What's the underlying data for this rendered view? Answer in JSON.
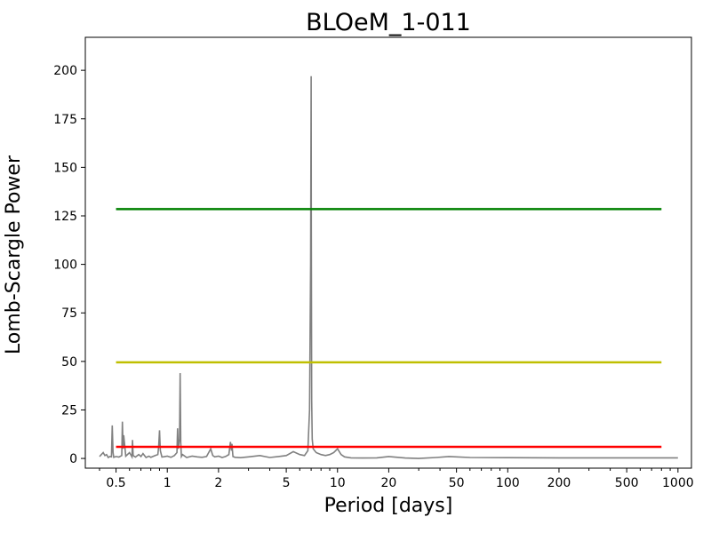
{
  "chart_data": {
    "type": "line",
    "title": "BLOeM_1-011",
    "xlabel": "Period [days]",
    "ylabel": "Lomb-Scargle Power",
    "x_scale": "log",
    "xlim": [
      0.33,
      1200
    ],
    "ylim": [
      -5,
      217
    ],
    "grid": false,
    "x_ticks": [
      0.5,
      1,
      2,
      5,
      10,
      20,
      50,
      100,
      200,
      500,
      1000
    ],
    "x_tick_labels": [
      "0.5",
      "1",
      "2",
      "5",
      "10",
      "20",
      "50",
      "100",
      "200",
      "500",
      "1000"
    ],
    "y_ticks": [
      0,
      25,
      50,
      75,
      100,
      125,
      150,
      175,
      200
    ],
    "y_tick_labels": [
      "0",
      "25",
      "50",
      "75",
      "100",
      "125",
      "150",
      "175",
      "200"
    ],
    "periodogram": {
      "color": "#808080",
      "x": [
        0.4,
        0.42,
        0.43,
        0.44,
        0.45,
        0.46,
        0.47,
        0.475,
        0.48,
        0.485,
        0.5,
        0.52,
        0.54,
        0.545,
        0.55,
        0.555,
        0.57,
        0.6,
        0.62,
        0.625,
        0.63,
        0.65,
        0.68,
        0.7,
        0.72,
        0.75,
        0.78,
        0.8,
        0.85,
        0.88,
        0.89,
        0.9,
        0.91,
        0.93,
        0.97,
        1.0,
        1.05,
        1.1,
        1.14,
        1.15,
        1.16,
        1.18,
        1.19,
        1.2,
        1.21,
        1.23,
        1.3,
        1.4,
        1.5,
        1.6,
        1.7,
        1.75,
        1.8,
        1.85,
        1.9,
        2.0,
        2.1,
        2.2,
        2.3,
        2.35,
        2.38,
        2.4,
        2.43,
        2.5,
        2.7,
        3.0,
        3.5,
        4.0,
        4.5,
        5.0,
        5.5,
        6.0,
        6.4,
        6.7,
        6.85,
        6.95,
        7.0,
        7.02,
        7.05,
        7.1,
        7.2,
        7.5,
        8.0,
        8.5,
        9.0,
        9.5,
        10.0,
        10.5,
        11.0,
        12.0,
        14.0,
        17.0,
        20.0,
        25.0,
        30.0,
        38.0,
        45.0,
        60.0,
        100.0,
        200.0,
        500.0,
        1000.0
      ],
      "y": [
        1.0,
        3.0,
        1.5,
        2.0,
        0.5,
        1.0,
        0.8,
        17.0,
        3.0,
        0.6,
        1.0,
        0.7,
        1.5,
        19.0,
        5.0,
        12.0,
        1.2,
        3.0,
        0.8,
        9.5,
        1.5,
        0.7,
        2.0,
        1.0,
        2.5,
        0.5,
        1.2,
        0.6,
        1.5,
        2.0,
        6.0,
        14.5,
        4.0,
        0.7,
        1.0,
        1.2,
        0.6,
        1.5,
        3.0,
        15.5,
        5.0,
        10.0,
        44.0,
        8.0,
        1.0,
        2.0,
        0.5,
        1.2,
        0.8,
        0.6,
        1.0,
        3.0,
        5.0,
        1.5,
        0.8,
        1.2,
        0.5,
        1.0,
        2.0,
        8.5,
        4.0,
        7.5,
        1.0,
        0.6,
        0.4,
        0.8,
        1.5,
        0.5,
        1.0,
        1.5,
        3.5,
        2.0,
        1.5,
        4.0,
        25.0,
        100.0,
        197.0,
        120.0,
        30.0,
        10.0,
        5.0,
        3.0,
        2.0,
        1.5,
        2.0,
        3.0,
        5.0,
        2.0,
        0.8,
        0.3,
        0.2,
        0.3,
        1.0,
        0.2,
        0.0,
        0.5,
        1.0,
        0.5,
        0.4,
        0.3,
        0.3,
        0.3
      ]
    },
    "threshold_lines": [
      {
        "color": "#008000",
        "y": 128.5,
        "x_start": 0.5,
        "x_end": 800
      },
      {
        "color": "#bfbf00",
        "y": 49.5,
        "x_start": 0.5,
        "x_end": 800
      },
      {
        "color": "#ff0000",
        "y": 6.0,
        "x_start": 0.5,
        "x_end": 800
      }
    ]
  }
}
